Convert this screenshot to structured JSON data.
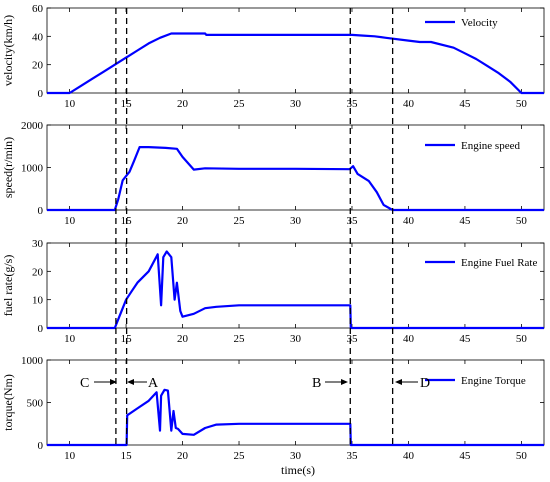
{
  "chart_data": [
    {
      "type": "line",
      "ylabel": "velocity(km/h)",
      "xlim": [
        8,
        52
      ],
      "ylim": [
        0,
        60
      ],
      "xticks": [
        "10",
        "15",
        "20",
        "25",
        "30",
        "35",
        "40",
        "45",
        "50"
      ],
      "yticks": [
        "0",
        "20",
        "40",
        "60"
      ],
      "legend_position": "top-right",
      "series": [
        {
          "name": "Velocity",
          "x": [
            8,
            10,
            11,
            12,
            13,
            14,
            15,
            16,
            17,
            18,
            19,
            20,
            22,
            22.1,
            25,
            30,
            33,
            35,
            36,
            37,
            38,
            40,
            41,
            42,
            44,
            45,
            46,
            47,
            48,
            49,
            50,
            52
          ],
          "y": [
            0,
            0,
            5,
            10,
            15,
            20,
            25,
            30,
            35,
            39,
            42,
            42,
            42,
            41,
            41,
            41,
            41,
            41,
            40.5,
            40,
            39,
            37,
            36,
            36,
            32,
            28,
            24,
            19,
            14,
            8,
            0,
            0
          ]
        }
      ]
    },
    {
      "type": "line",
      "ylabel": "speed(r/min)",
      "xlim": [
        8,
        52
      ],
      "ylim": [
        0,
        2000
      ],
      "xticks": [
        "10",
        "15",
        "20",
        "25",
        "30",
        "35",
        "40",
        "45",
        "50"
      ],
      "yticks": [
        "0",
        "1000",
        "2000"
      ],
      "legend_position": "top-right",
      "series": [
        {
          "name": "Engine speed",
          "x": [
            8,
            14,
            14.3,
            14.7,
            15.3,
            15.7,
            16.2,
            17,
            18.5,
            19.5,
            20,
            21,
            22,
            25,
            30,
            34.8,
            35.1,
            35.5,
            36.5,
            37.2,
            37.8,
            38.6,
            52
          ],
          "y": [
            0,
            0,
            250,
            700,
            900,
            1150,
            1480,
            1480,
            1460,
            1440,
            1250,
            950,
            980,
            970,
            970,
            960,
            1030,
            850,
            680,
            420,
            120,
            0,
            0
          ]
        }
      ]
    },
    {
      "type": "line",
      "ylabel": "fuel rate(g/s)",
      "xlim": [
        8,
        52
      ],
      "ylim": [
        0,
        30
      ],
      "xticks": [
        "10",
        "15",
        "20",
        "25",
        "30",
        "35",
        "40",
        "45",
        "50"
      ],
      "yticks": [
        "0",
        "10",
        "20",
        "30"
      ],
      "legend_position": "top-right",
      "series": [
        {
          "name": "Engine Fuel Rate",
          "x": [
            8,
            14,
            14.4,
            15,
            15.5,
            16,
            17,
            17.8,
            18.1,
            18.3,
            18.6,
            19,
            19.3,
            19.5,
            19.8,
            20,
            21,
            22,
            23,
            25,
            30,
            34.85,
            34.9,
            52
          ],
          "y": [
            0,
            0,
            4,
            10,
            13,
            16,
            20,
            26,
            8,
            25,
            27,
            25,
            10,
            16,
            6,
            4,
            5,
            7,
            7.5,
            8,
            8,
            8,
            0,
            0
          ]
        }
      ]
    },
    {
      "type": "line",
      "ylabel": "torque(Nm)",
      "xlabel": "time(s)",
      "xlim": [
        8,
        52
      ],
      "ylim": [
        0,
        1000
      ],
      "xticks": [
        "10",
        "15",
        "20",
        "25",
        "30",
        "35",
        "40",
        "45",
        "50"
      ],
      "yticks": [
        "0",
        "500",
        "1000"
      ],
      "legend_position": "top-right",
      "annotations": [
        "C",
        "A",
        "B",
        "D"
      ],
      "series": [
        {
          "name": "Engine Torque",
          "x": [
            8,
            15.05,
            15.1,
            16,
            17,
            17.7,
            18,
            18.1,
            18.4,
            18.7,
            19,
            19.2,
            19.4,
            19.6,
            20,
            21,
            22,
            23,
            25,
            30,
            34.85,
            34.9,
            52
          ],
          "y": [
            0,
            0,
            350,
            430,
            520,
            620,
            170,
            580,
            650,
            640,
            170,
            400,
            200,
            190,
            130,
            120,
            200,
            240,
            250,
            250,
            250,
            0,
            0
          ]
        }
      ]
    }
  ],
  "markers_x": [
    14.1,
    15.05,
    34.85,
    38.6
  ]
}
